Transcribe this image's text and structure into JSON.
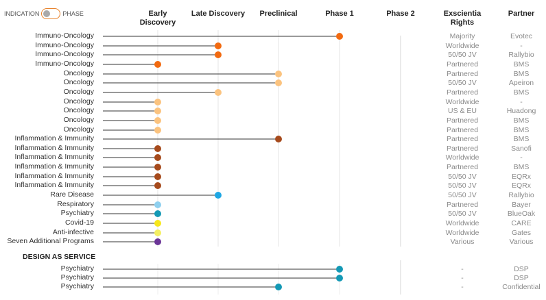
{
  "toggle": {
    "left_label": "INDICATION",
    "right_label": "PHASE"
  },
  "columns": {
    "early_discovery": [
      "Early",
      "Discovery"
    ],
    "late_discovery": "Late Discovery",
    "preclinical": "Preclinical",
    "phase1": "Phase 1",
    "phase2": "Phase 2",
    "rights": [
      "Exscientia",
      "Rights"
    ],
    "partner": "Partner"
  },
  "colors": {
    "immuno_oncology": "#f26a10",
    "oncology": "#fbc37f",
    "inflammation": "#a64a1c",
    "rare_disease": "#1ea7e4",
    "respiratory": "#8fd0ef",
    "psychiatry": "#1499b5",
    "covid": "#f7e71a",
    "anti_infective": "#f4ef62",
    "additional": "#6b3597"
  },
  "programs": [
    {
      "indication": "Immuno-Oncology",
      "stage": "Phase 1",
      "rights": "Majority",
      "partner": "Evotec",
      "color": "#f26a10"
    },
    {
      "indication": "Immuno-Oncology",
      "stage": "Late Discovery",
      "rights": "Worldwide",
      "partner": "-",
      "color": "#f26a10"
    },
    {
      "indication": "Immuno-Oncology",
      "stage": "Late Discovery",
      "rights": "50/50 JV",
      "partner": "Rallybio",
      "color": "#f26a10"
    },
    {
      "indication": "Immuno-Oncology",
      "stage": "Early Discovery",
      "rights": "Partnered",
      "partner": "BMS",
      "color": "#f26a10"
    },
    {
      "indication": "Oncology",
      "stage": "Preclinical",
      "rights": "Partnered",
      "partner": "BMS",
      "color": "#fbc37f"
    },
    {
      "indication": "Oncology",
      "stage": "Preclinical",
      "rights": "50/50 JV",
      "partner": "Apeiron",
      "color": "#fbc37f"
    },
    {
      "indication": "Oncology",
      "stage": "Late Discovery",
      "rights": "Partnered",
      "partner": "BMS",
      "color": "#fbc37f"
    },
    {
      "indication": "Oncology",
      "stage": "Early Discovery",
      "rights": "Worldwide",
      "partner": "-",
      "color": "#fbc37f"
    },
    {
      "indication": "Oncology",
      "stage": "Early Discovery",
      "rights": "US & EU",
      "partner": "Huadong",
      "color": "#fbc37f"
    },
    {
      "indication": "Oncology",
      "stage": "Early Discovery",
      "rights": "Partnered",
      "partner": "BMS",
      "color": "#fbc37f"
    },
    {
      "indication": "Oncology",
      "stage": "Early Discovery",
      "rights": "Partnered",
      "partner": "BMS",
      "color": "#fbc37f"
    },
    {
      "indication": "Inflammation & Immunity",
      "stage": "Preclinical",
      "rights": "Partnered",
      "partner": "BMS",
      "color": "#a64a1c"
    },
    {
      "indication": "Inflammation & Immunity",
      "stage": "Early Discovery",
      "rights": "Partnered",
      "partner": "Sanofi",
      "color": "#a64a1c"
    },
    {
      "indication": "Inflammation & Immunity",
      "stage": "Early Discovery",
      "rights": "Worldwide",
      "partner": "-",
      "color": "#a64a1c"
    },
    {
      "indication": "Inflammation & Immunity",
      "stage": "Early Discovery",
      "rights": "Partnered",
      "partner": "BMS",
      "color": "#a64a1c"
    },
    {
      "indication": "Inflammation & Immunity",
      "stage": "Early Discovery",
      "rights": "50/50 JV",
      "partner": "EQRx",
      "color": "#a64a1c"
    },
    {
      "indication": "Inflammation & Immunity",
      "stage": "Early Discovery",
      "rights": "50/50 JV",
      "partner": "EQRx",
      "color": "#a64a1c"
    },
    {
      "indication": "Rare Disease",
      "stage": "Late Discovery",
      "rights": "50/50 JV",
      "partner": "Rallybio",
      "color": "#1ea7e4"
    },
    {
      "indication": "Respiratory",
      "stage": "Early Discovery",
      "rights": "Partnered",
      "partner": "Bayer",
      "color": "#8fd0ef"
    },
    {
      "indication": "Psychiatry",
      "stage": "Early Discovery",
      "rights": "50/50 JV",
      "partner": "BlueOak",
      "color": "#1499b5"
    },
    {
      "indication": "Covid-19",
      "stage": "Early Discovery",
      "rights": "Worldwide",
      "partner": "CARE",
      "color": "#f7e71a"
    },
    {
      "indication": "Anti-infective",
      "stage": "Early Discovery",
      "rights": "Worldwide",
      "partner": "Gates",
      "color": "#f4ef62"
    },
    {
      "indication": "Seven Additional Programs",
      "stage": "Early Discovery",
      "rights": "Various",
      "partner": "Various",
      "color": "#6b3597"
    }
  ],
  "design_as_service": {
    "title": "DESIGN AS SERVICE",
    "programs": [
      {
        "indication": "Psychiatry",
        "stage": "Phase 1",
        "rights": "-",
        "partner": "DSP",
        "color": "#1499b5"
      },
      {
        "indication": "Psychiatry",
        "stage": "Phase 1",
        "rights": "-",
        "partner": "DSP",
        "color": "#1499b5"
      },
      {
        "indication": "Psychiatry",
        "stage": "Preclinical",
        "rights": "-",
        "partner": "Confidential",
        "color": "#1499b5"
      }
    ]
  }
}
